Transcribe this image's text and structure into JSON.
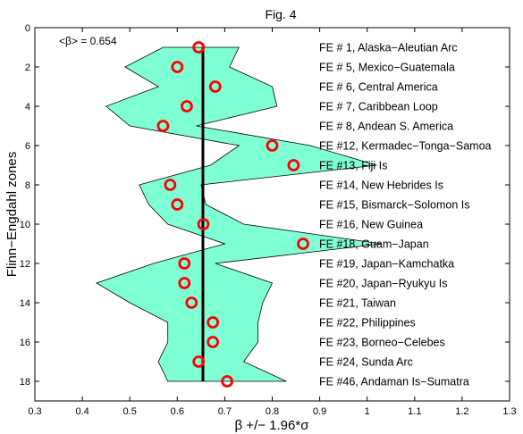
{
  "chart_data": {
    "type": "scatter",
    "title": "Fig. 4",
    "xlabel": "β +/− 1.96*σ",
    "ylabel": "Flinn−Engdahl zones",
    "annotation": "<β> = 0.654",
    "mean_beta": 0.654,
    "xlim": [
      0.3,
      1.3
    ],
    "ylim": [
      0,
      19
    ],
    "y_reversed": true,
    "xticks": [
      "0.3",
      "0.4",
      "0.5",
      "0.6",
      "0.7",
      "0.8",
      "0.9",
      "1",
      "1.1",
      "1.2",
      "1.3"
    ],
    "yticks": [
      "0",
      "2",
      "4",
      "6",
      "8",
      "10",
      "12",
      "14",
      "16",
      "18"
    ],
    "grid": false,
    "colors": {
      "band": "#7fffd4",
      "marker": "#ff0000",
      "mean_line": "#000000"
    },
    "points": [
      {
        "zone": 1,
        "label": "FE # 1, Alaska−Aleutian Arc",
        "beta": 0.645,
        "lower": 0.57,
        "upper": 0.73
      },
      {
        "zone": 2,
        "label": "FE # 5, Mexico−Guatemala",
        "beta": 0.6,
        "lower": 0.49,
        "upper": 0.71
      },
      {
        "zone": 3,
        "label": "FE # 6, Central America",
        "beta": 0.68,
        "lower": 0.56,
        "upper": 0.8
      },
      {
        "zone": 4,
        "label": "FE # 7, Caribbean Loop",
        "beta": 0.62,
        "lower": 0.45,
        "upper": 0.81
      },
      {
        "zone": 5,
        "label": "FE # 8, Andean S. America",
        "beta": 0.57,
        "lower": 0.5,
        "upper": 0.64
      },
      {
        "zone": 6,
        "label": "FE #12, Kermadec−Tonga−Samoa",
        "beta": 0.8,
        "lower": 0.73,
        "upper": 0.88
      },
      {
        "zone": 7,
        "label": "FE #13, Fiji Is",
        "beta": 0.845,
        "lower": 0.67,
        "upper": 1.02
      },
      {
        "zone": 8,
        "label": "FE #14, New Hebrides Is",
        "beta": 0.585,
        "lower": 0.52,
        "upper": 0.65
      },
      {
        "zone": 9,
        "label": "FE #15, Bismarck−Solomon Is",
        "beta": 0.6,
        "lower": 0.54,
        "upper": 0.66
      },
      {
        "zone": 10,
        "label": "FE #16, New Guinea",
        "beta": 0.655,
        "lower": 0.58,
        "upper": 0.74
      },
      {
        "zone": 11,
        "label": "FE #18, Guam−Japan",
        "beta": 0.865,
        "lower": 0.7,
        "upper": 1.03
      },
      {
        "zone": 12,
        "label": "FE #19, Japan−Kamchatka",
        "beta": 0.615,
        "lower": 0.55,
        "upper": 0.68
      },
      {
        "zone": 13,
        "label": "FE #20, Japan−Ryukyu Is",
        "beta": 0.615,
        "lower": 0.43,
        "upper": 0.8
      },
      {
        "zone": 14,
        "label": "FE #21, Taiwan",
        "beta": 0.63,
        "lower": 0.5,
        "upper": 0.78
      },
      {
        "zone": 15,
        "label": "FE #22, Philippines",
        "beta": 0.675,
        "lower": 0.58,
        "upper": 0.77
      },
      {
        "zone": 16,
        "label": "FE #23, Borneo−Celebes",
        "beta": 0.675,
        "lower": 0.58,
        "upper": 0.77
      },
      {
        "zone": 17,
        "label": "FE #24, Sunda Arc",
        "beta": 0.645,
        "lower": 0.56,
        "upper": 0.74
      },
      {
        "zone": 18,
        "label": "FE #46, Andaman Is−Sumatra",
        "beta": 0.705,
        "lower": 0.58,
        "upper": 0.83
      }
    ]
  }
}
